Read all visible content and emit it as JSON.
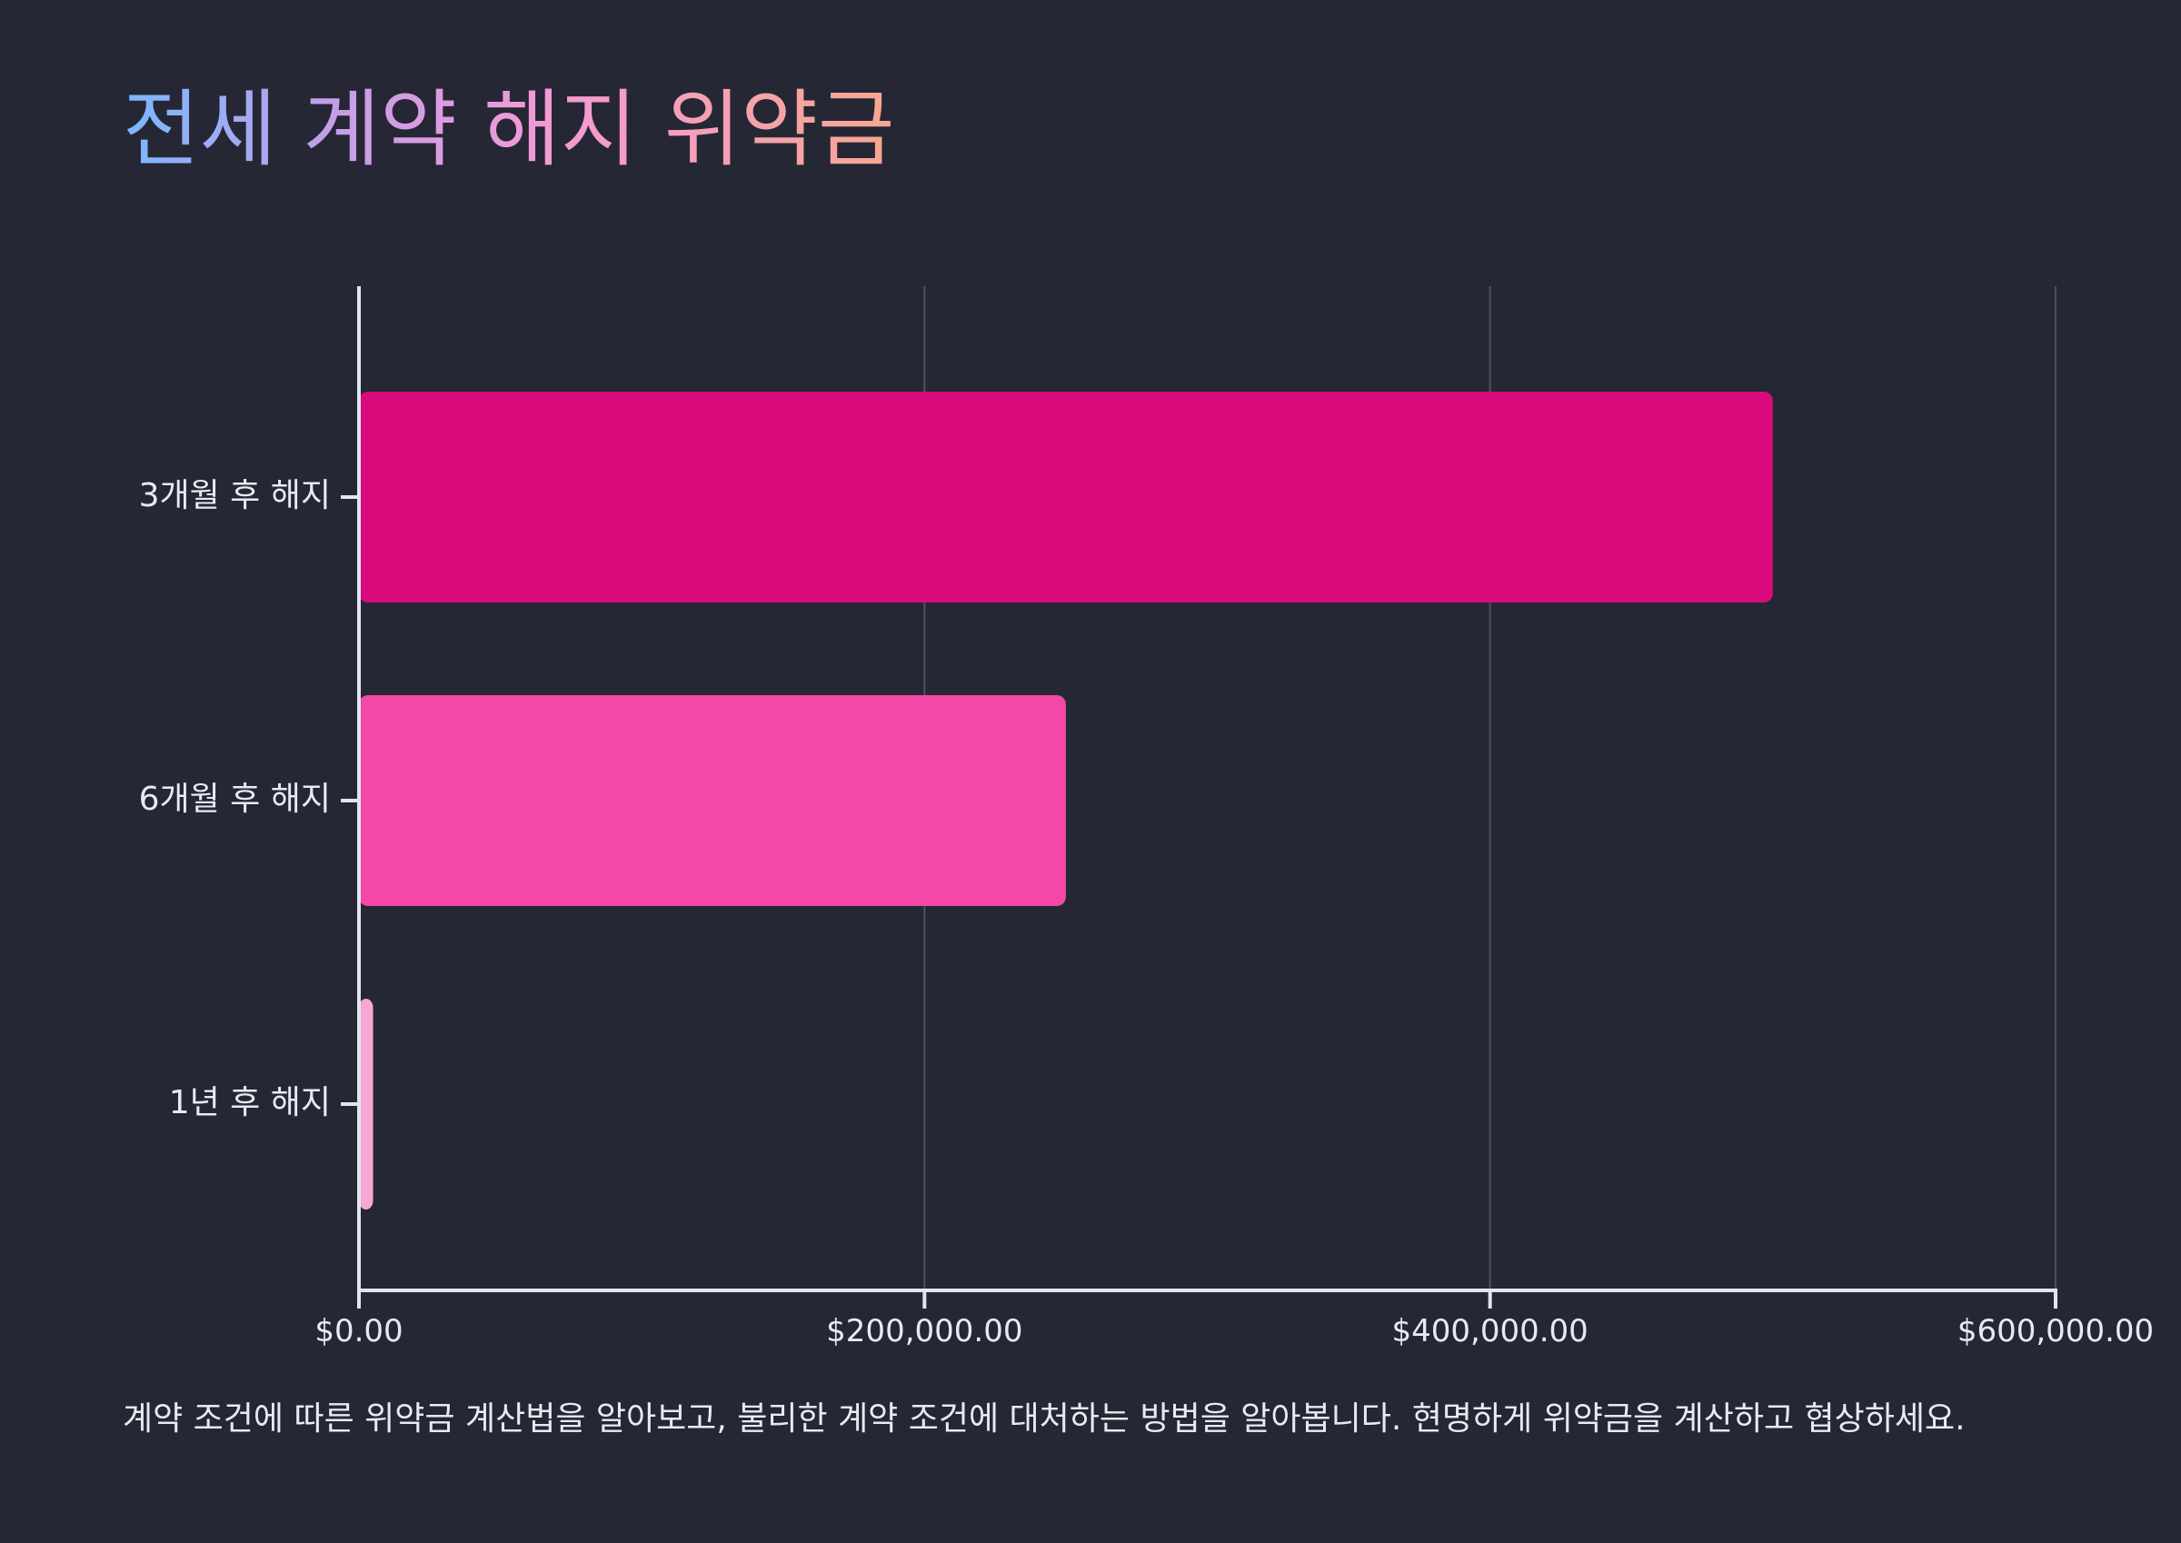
{
  "colors": {
    "background": "#252734",
    "axis": "#dfe6f2",
    "grid": "#4d5262",
    "label_text": "#e8eaf3",
    "title_gradient": [
      "#7ab8ff",
      "#c59ee8",
      "#f49ad6",
      "#f7a78f"
    ]
  },
  "chart_data": {
    "type": "bar",
    "orientation": "horizontal",
    "title": "전세 계약 해지 위약금",
    "xlabel": "",
    "ylabel": "",
    "categories": [
      "3개월 후 해지",
      "6개월 후 해지",
      "1년 후 해지"
    ],
    "values": [
      500000,
      250000,
      5000
    ],
    "bar_colors": [
      "#d90b7d",
      "#f547a5",
      "#f8a6d5"
    ],
    "xlim": [
      0,
      600000
    ],
    "x_ticks": [
      0,
      200000,
      400000,
      600000
    ],
    "x_tick_labels": [
      "$0.00",
      "$200,000.00",
      "$400,000.00",
      "$600,000.00"
    ],
    "grid": "vertical",
    "legend": "none",
    "footnote": "계약 조건에 따른 위약금 계산법을 알아보고, 불리한 계약 조건에 대처하는 방법을 알아봅니다. 현명하게 위약금을 계산하고 협상하세요."
  }
}
